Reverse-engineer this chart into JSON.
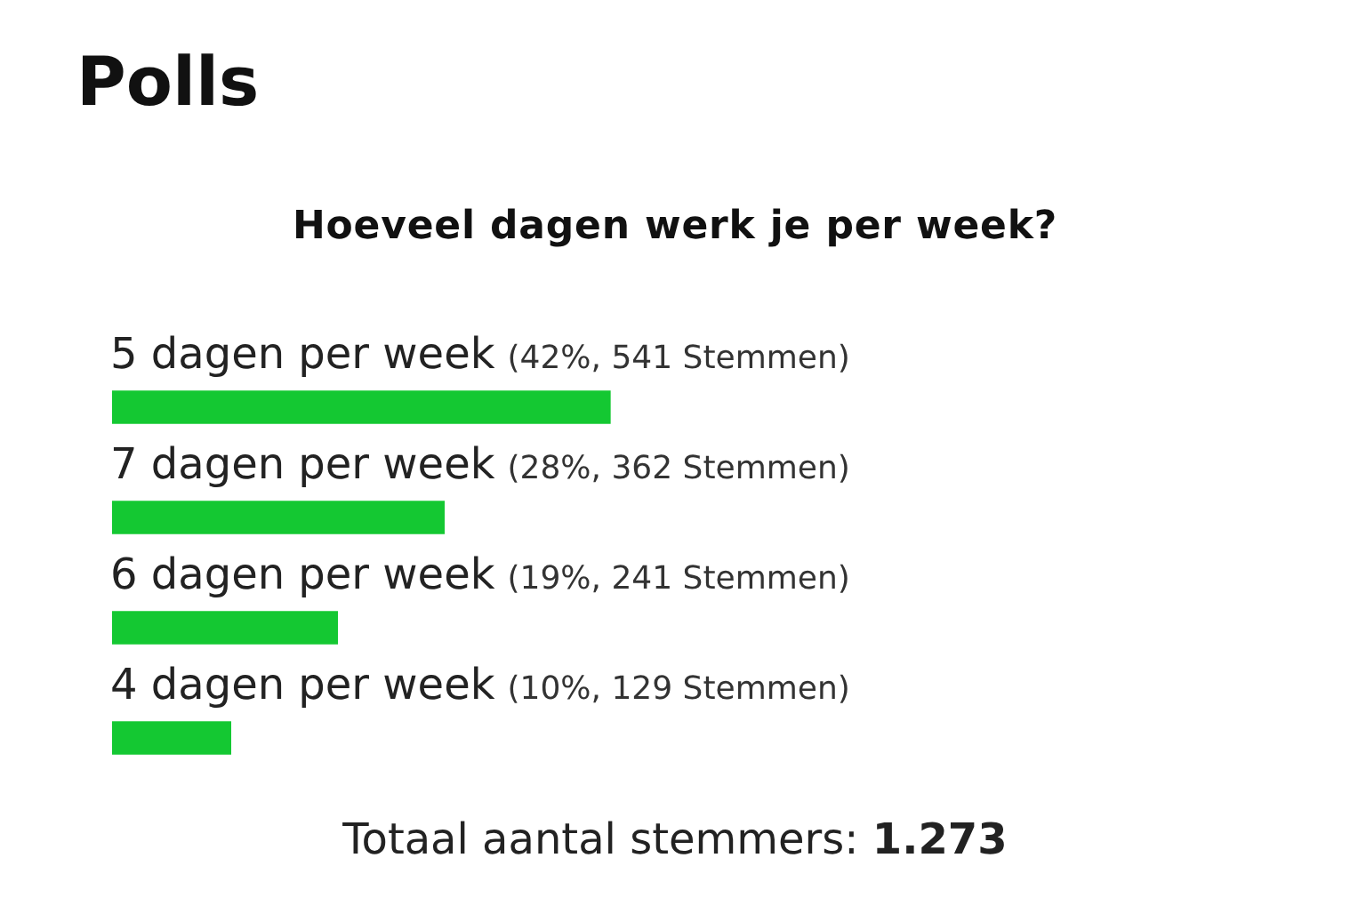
{
  "chart_data": {
    "type": "bar",
    "orientation": "horizontal",
    "title": "Polls",
    "subtitle": "Hoeveel dagen werk je per week?",
    "categories": [
      "5 dagen per week",
      "7 dagen per week",
      "6 dagen per week",
      "4 dagen per week"
    ],
    "values": [
      42,
      28,
      19,
      10
    ],
    "value_labels": [
      "(42%, 541 Stemmen)",
      "(28%, 362 Stemmen)",
      "(19%, 241 Stemmen)",
      "(10%, 129 Stemmen)"
    ],
    "color": "#14c832",
    "tick_labels": "y",
    "annotations": [
      "Totaal aantal stemmers: 1.273"
    ]
  }
}
